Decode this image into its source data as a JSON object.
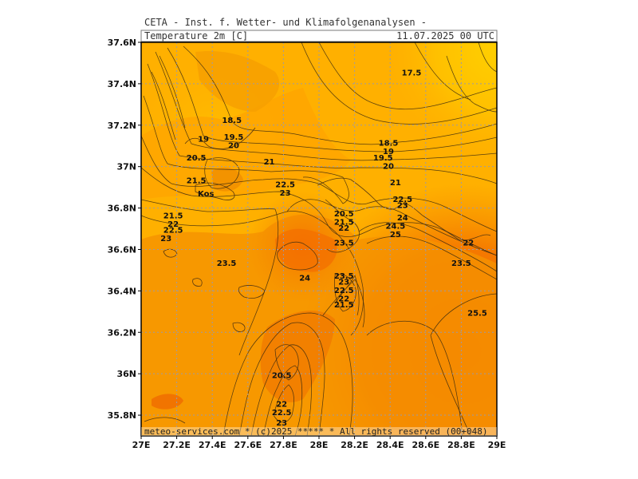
{
  "header": {
    "source": "CETA - Inst. f. Wetter- und Klimafolgenanalysen -",
    "parameter": "Temperature 2m [C]",
    "valid_time": "11.07.2025 00 UTC"
  },
  "footer": {
    "credit": "meteo-services.com * (c)2025 ***** * All rights reserved (00+048)"
  },
  "map": {
    "label_kos": "Kos",
    "colors": {
      "cool": "#ffd200",
      "mid": "#ffb000",
      "warm": "#f58a00",
      "hot": "#f26d00",
      "land": "#fa8c05",
      "grid": "#9a9aa8",
      "contour": "#3a2a10"
    }
  },
  "chart_data": {
    "type": "heatmap",
    "title": "Temperature 2m [C]",
    "xlabel": "",
    "ylabel": "",
    "xlim": [
      27.0,
      29.0
    ],
    "ylim": [
      35.7,
      37.6
    ],
    "grid": true,
    "x_ticks": [
      "27E",
      "27.2E",
      "27.4E",
      "27.6E",
      "27.8E",
      "28E",
      "28.2E",
      "28.4E",
      "28.6E",
      "28.8E",
      "29E"
    ],
    "y_ticks": [
      "35.8N",
      "36N",
      "36.2N",
      "36.4N",
      "36.6N",
      "36.8N",
      "37N",
      "37.2N",
      "37.4N",
      "37.6N"
    ],
    "contour_labels": [
      {
        "lon": 28.52,
        "lat": 37.44,
        "value": "17.5"
      },
      {
        "lon": 27.51,
        "lat": 37.21,
        "value": "18.5"
      },
      {
        "lon": 27.35,
        "lat": 37.12,
        "value": "19"
      },
      {
        "lon": 27.52,
        "lat": 37.13,
        "value": "19.5"
      },
      {
        "lon": 27.52,
        "lat": 37.09,
        "value": "20"
      },
      {
        "lon": 27.31,
        "lat": 37.03,
        "value": "20.5"
      },
      {
        "lon": 27.72,
        "lat": 37.01,
        "value": "21"
      },
      {
        "lon": 27.31,
        "lat": 36.92,
        "value": "21.5"
      },
      {
        "lon": 27.81,
        "lat": 36.9,
        "value": "22.5"
      },
      {
        "lon": 27.81,
        "lat": 36.86,
        "value": "23"
      },
      {
        "lon": 27.18,
        "lat": 36.75,
        "value": "21.5"
      },
      {
        "lon": 27.18,
        "lat": 36.71,
        "value": "22"
      },
      {
        "lon": 27.18,
        "lat": 36.68,
        "value": "22.5"
      },
      {
        "lon": 27.14,
        "lat": 36.64,
        "value": "23"
      },
      {
        "lon": 28.39,
        "lat": 37.1,
        "value": "18.5"
      },
      {
        "lon": 28.39,
        "lat": 37.06,
        "value": "19"
      },
      {
        "lon": 28.36,
        "lat": 37.03,
        "value": "19.5"
      },
      {
        "lon": 28.39,
        "lat": 36.99,
        "value": "20"
      },
      {
        "lon": 28.43,
        "lat": 36.91,
        "value": "21"
      },
      {
        "lon": 28.47,
        "lat": 36.83,
        "value": "22.5"
      },
      {
        "lon": 28.47,
        "lat": 36.8,
        "value": "23"
      },
      {
        "lon": 28.47,
        "lat": 36.74,
        "value": "24"
      },
      {
        "lon": 28.43,
        "lat": 36.7,
        "value": "24.5"
      },
      {
        "lon": 28.43,
        "lat": 36.66,
        "value": "25"
      },
      {
        "lon": 28.14,
        "lat": 36.76,
        "value": "20.5"
      },
      {
        "lon": 28.14,
        "lat": 36.72,
        "value": "21.5"
      },
      {
        "lon": 28.14,
        "lat": 36.69,
        "value": "22"
      },
      {
        "lon": 28.14,
        "lat": 36.62,
        "value": "23.5"
      },
      {
        "lon": 28.84,
        "lat": 36.62,
        "value": "22"
      },
      {
        "lon": 28.8,
        "lat": 36.52,
        "value": "23.5"
      },
      {
        "lon": 27.48,
        "lat": 36.52,
        "value": "23.5"
      },
      {
        "lon": 27.92,
        "lat": 36.45,
        "value": "24"
      },
      {
        "lon": 28.14,
        "lat": 36.46,
        "value": "23.5"
      },
      {
        "lon": 28.14,
        "lat": 36.43,
        "value": "23"
      },
      {
        "lon": 28.14,
        "lat": 36.39,
        "value": "22.5"
      },
      {
        "lon": 28.14,
        "lat": 36.35,
        "value": "22"
      },
      {
        "lon": 28.14,
        "lat": 36.32,
        "value": "21.5"
      },
      {
        "lon": 28.89,
        "lat": 36.28,
        "value": "25.5"
      },
      {
        "lon": 27.79,
        "lat": 35.98,
        "value": "20.5"
      },
      {
        "lon": 27.79,
        "lat": 35.84,
        "value": "22"
      },
      {
        "lon": 27.79,
        "lat": 35.8,
        "value": "22.5"
      },
      {
        "lon": 27.79,
        "lat": 35.75,
        "value": "23"
      }
    ]
  }
}
